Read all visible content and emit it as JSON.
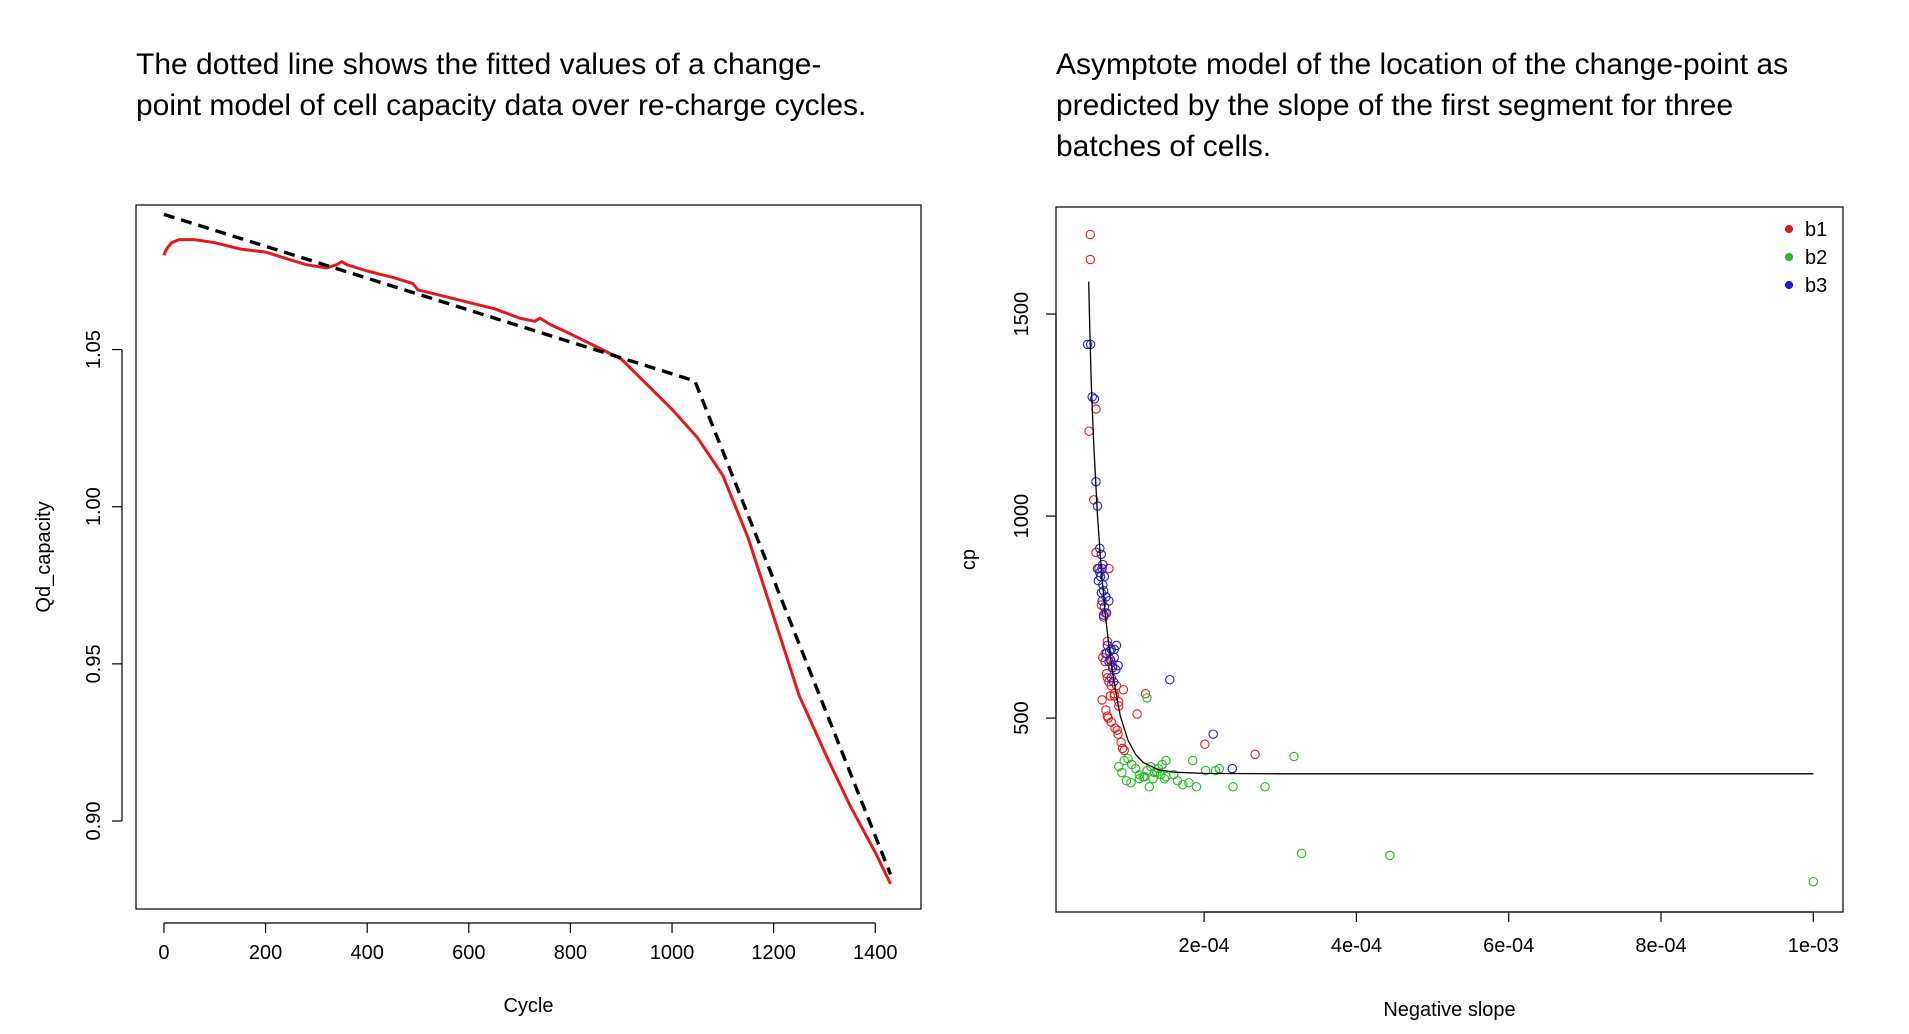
{
  "captions": {
    "left": "The dotted line shows the fitted values of a change-point model of cell capacity data over re-charge cycles.",
    "right": "Asymptote model of the location of the change-point as predicted by the slope of the first segment for three batches of cells."
  },
  "chart_data": [
    {
      "type": "line",
      "title": "",
      "xlabel": "Cycle",
      "ylabel": "Qd_capacity",
      "xlim": [
        -55,
        1490
      ],
      "ylim": [
        0.872,
        1.096
      ],
      "xticks": [
        "0",
        "200",
        "400",
        "600",
        "800",
        "1000",
        "1200",
        "1400"
      ],
      "yticks": [
        "0.90",
        "0.95",
        "1.00",
        "1.05"
      ],
      "colors": {
        "observed": "#e31a1c",
        "fitted": "#000000"
      },
      "series": [
        {
          "name": "observed capacity",
          "style": "solid",
          "x": [
            0,
            5,
            15,
            30,
            60,
            100,
            150,
            200,
            240,
            280,
            320,
            340,
            350,
            360,
            400,
            450,
            490,
            500,
            550,
            600,
            650,
            700,
            730,
            740,
            760,
            800,
            850,
            900,
            950,
            1000,
            1050,
            1100,
            1150,
            1200,
            1250,
            1300,
            1350,
            1400,
            1430
          ],
          "y": [
            1.08,
            1.082,
            1.084,
            1.085,
            1.085,
            1.084,
            1.082,
            1.081,
            1.079,
            1.077,
            1.076,
            1.077,
            1.078,
            1.077,
            1.075,
            1.073,
            1.071,
            1.069,
            1.067,
            1.065,
            1.063,
            1.06,
            1.059,
            1.06,
            1.058,
            1.055,
            1.051,
            1.047,
            1.039,
            1.031,
            1.022,
            1.01,
            0.99,
            0.965,
            0.94,
            0.922,
            0.905,
            0.89,
            0.88
          ]
        },
        {
          "name": "fitted change-point model",
          "style": "dashed",
          "x": [
            0,
            1045,
            1430
          ],
          "y": [
            1.093,
            1.04,
            0.883
          ]
        }
      ]
    },
    {
      "type": "scatter",
      "title": "",
      "xlabel": "Negative slope",
      "ylabel": "cp",
      "xlim": [
        5.5e-06,
        0.001039
      ],
      "ylim": [
        20,
        1765
      ],
      "xticks": [
        "2e-04",
        "4e-04",
        "6e-04",
        "8e-04",
        "1e-03"
      ],
      "xtick_values": [
        0.0002,
        0.0004,
        0.0006,
        0.0008,
        0.001
      ],
      "yticks": [
        "500",
        "1000",
        "1500"
      ],
      "ytick_values": [
        500,
        1000,
        1500
      ],
      "legend_position": "top-right",
      "legend": [
        {
          "name": "b1",
          "color": "#e31a1c"
        },
        {
          "name": "b2",
          "color": "#22bb22"
        },
        {
          "name": "b3",
          "color": "#1f1fd6"
        }
      ],
      "series": [
        {
          "name": "b1",
          "color": "#e31a1c",
          "x": [
            5.05e-05,
            5.05e-05,
            4.9e-05,
            5.8e-05,
            5.5e-05,
            5.8e-05,
            6.2e-05,
            6.5e-05,
            6.7e-05,
            7e-05,
            7.2e-05,
            7.5e-05,
            6.8e-05,
            7.3e-05,
            7.8e-05,
            8e-05,
            8.5e-05,
            8.8e-05,
            6.6e-05,
            7.1e-05,
            7.4e-05,
            7.8e-05,
            8.2e-05,
            8.6e-05,
            8.3e-05,
            8.7e-05,
            9.1e-05,
            9.5e-05,
            9.3e-05,
            7.5e-05,
            7e-05,
            7.7e-05,
            9.4e-05,
            7e-05,
            7.3e-05,
            7.8e-05,
            8.2e-05,
            8.8e-05,
            7.3e-05,
            0.000112,
            0.000123,
            0.000201,
            0.000267
          ],
          "y": [
            1697,
            1635,
            1210,
            1265,
            1040,
            910,
            870,
            780,
            650,
            640,
            610,
            590,
            750,
            690,
            640,
            630,
            580,
            540,
            545,
            520,
            500,
            490,
            560,
            470,
            475,
            460,
            440,
            420,
            425,
            870,
            760,
            555,
            570,
            660,
            600,
            580,
            555,
            530,
            505,
            510,
            560,
            435,
            410
          ]
        },
        {
          "name": "b2",
          "color": "#22bb22",
          "x": [
            8.8e-05,
            9.5e-05,
            0.0001,
            0.000105,
            0.00011,
            0.000115,
            0.00012,
            0.000125,
            0.00013,
            0.000135,
            0.00014,
            0.000145,
            0.00015,
            9.2e-05,
            9.8e-05,
            0.000104,
            0.000115,
            0.000122,
            0.000128,
            0.000133,
            0.000138,
            0.000143,
            0.000148,
            0.00015,
            0.00016,
            0.000165,
            0.000172,
            0.00018,
            0.000185,
            0.00019,
            0.000202,
            0.000215,
            0.00022,
            0.000238,
            0.00028,
            0.000318,
            0.000328,
            0.000444,
            0.001,
            0.000125
          ],
          "y": [
            380,
            395,
            400,
            385,
            375,
            360,
            355,
            370,
            380,
            365,
            375,
            385,
            395,
            365,
            345,
            340,
            350,
            355,
            330,
            350,
            365,
            360,
            350,
            355,
            360,
            345,
            335,
            340,
            395,
            330,
            370,
            370,
            375,
            330,
            330,
            405,
            165,
            160,
            95,
            550
          ]
        },
        {
          "name": "b3",
          "color": "#1f1fd6",
          "x": [
            4.7e-05,
            5.1e-05,
            5.3e-05,
            5.6e-05,
            5.8e-05,
            6e-05,
            6.3e-05,
            6.5e-05,
            6.7e-05,
            6e-05,
            6.3e-05,
            6.6e-05,
            6.9e-05,
            6.1e-05,
            6.4e-05,
            6.7e-05,
            6.5e-05,
            6.8e-05,
            7.1e-05,
            6.6e-05,
            6.9e-05,
            7.2e-05,
            7.5e-05,
            6.8e-05,
            7.3e-05,
            7.8e-05,
            8.2e-05,
            8.5e-05,
            7.2e-05,
            7.6e-05,
            7.5e-05,
            8e-05,
            8.4e-05,
            7.7e-05,
            8.2e-05,
            7.8e-05,
            8.1e-05,
            8.7e-05,
            0.000155,
            0.000212,
            0.000237
          ],
          "y": [
            1425,
            1425,
            1295,
            1290,
            1085,
            1025,
            920,
            905,
            880,
            870,
            860,
            870,
            850,
            840,
            850,
            830,
            810,
            815,
            800,
            790,
            775,
            760,
            790,
            755,
            680,
            670,
            650,
            680,
            660,
            665,
            640,
            625,
            620,
            645,
            670,
            600,
            590,
            630,
            595,
            460,
            375
          ]
        },
        {
          "name": "asymptote fit",
          "color": "#000000",
          "x": [
            4.85e-05,
            5e-05,
            5.2e-05,
            5.5e-05,
            6e-05,
            6.5e-05,
            7e-05,
            7.5e-05,
            8e-05,
            8.5e-05,
            9e-05,
            0.0001,
            0.00011,
            0.00012,
            0.00014,
            0.00016,
            0.0002,
            0.0003,
            0.0005,
            0.001
          ],
          "y": [
            1580,
            1450,
            1320,
            1180,
            1000,
            870,
            760,
            680,
            610,
            555,
            505,
            445,
            410,
            390,
            372,
            366,
            363,
            362,
            362,
            362
          ]
        }
      ]
    }
  ]
}
